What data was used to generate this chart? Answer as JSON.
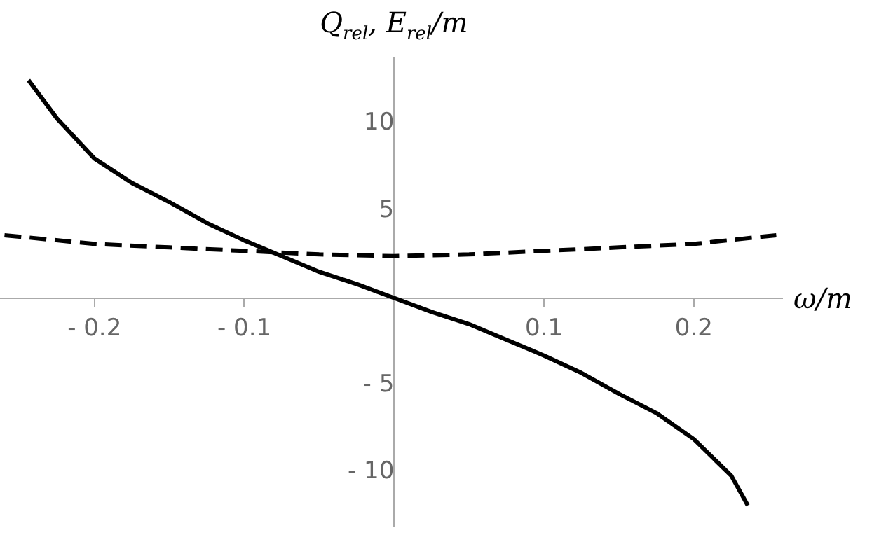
{
  "chart_data": {
    "type": "line",
    "xlabel": "ω/m",
    "ylabel": "Q$_{rel}$, E$_{rel}$/m",
    "xlim": [
      -0.263,
      0.259
    ],
    "ylim": [
      -13.1,
      13.8
    ],
    "xticks": [
      {
        "value": -0.2,
        "label": "- 0.2"
      },
      {
        "value": -0.1,
        "label": "- 0.1"
      },
      0.1,
      0.2
    ],
    "yticks": [
      {
        "value": -10,
        "label": "- 10"
      },
      {
        "value": -5,
        "label": "- 5"
      },
      5,
      10
    ],
    "grid": false,
    "legend": false,
    "marker": "none",
    "series": [
      {
        "color": "#000000",
        "line_style": "solid",
        "x": [
          -0.244,
          -0.225,
          -0.2,
          -0.175,
          -0.15,
          -0.125,
          -0.1,
          -0.075,
          -0.05,
          -0.025,
          0,
          0.025,
          0.05,
          0.075,
          0.1,
          0.125,
          0.15,
          0.175,
          0.2,
          0.225,
          0.236
        ],
        "values": [
          12.5,
          10.3,
          8.0,
          6.6,
          5.5,
          4.3,
          3.3,
          2.4,
          1.5,
          0.8,
          0,
          -0.8,
          -1.5,
          -2.4,
          -3.3,
          -4.3,
          -5.5,
          -6.6,
          -8.1,
          -10.2,
          -11.9
        ]
      },
      {
        "color": "#000000",
        "line_style": "dashed",
        "x": [
          -0.26,
          -0.2,
          -0.15,
          -0.1,
          -0.05,
          0,
          0.05,
          0.1,
          0.15,
          0.2,
          0.255
        ],
        "values": [
          3.6,
          3.1,
          2.9,
          2.7,
          2.5,
          2.4,
          2.5,
          2.7,
          2.9,
          3.1,
          3.6
        ]
      }
    ]
  }
}
